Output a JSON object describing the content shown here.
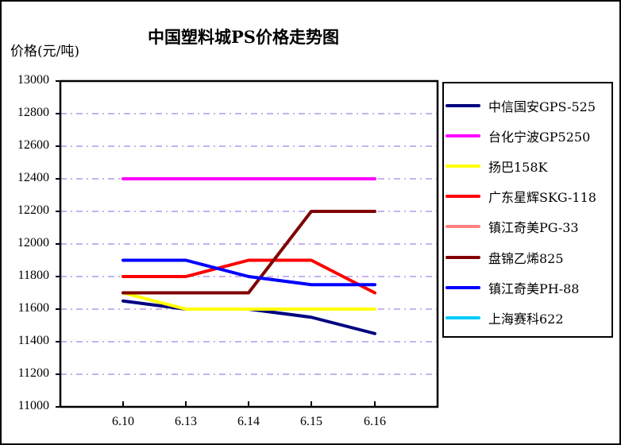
{
  "chart_data": {
    "type": "line",
    "title": "中国塑料城PS价格走势图",
    "ylabel": "价格(元/吨)",
    "xlabel": "",
    "categories": [
      "6.10",
      "6.13",
      "6.14",
      "6.15",
      "6.16"
    ],
    "ylim": [
      11000,
      13000
    ],
    "yticks": [
      13000,
      12800,
      12600,
      12400,
      12200,
      12000,
      11800,
      11600,
      11400,
      11200,
      11000
    ],
    "grid": true,
    "legend_position": "right",
    "series": [
      {
        "name": "中信国安GPS-525",
        "color": "#000080",
        "values": [
          11650,
          11600,
          11600,
          11550,
          11450
        ]
      },
      {
        "name": "台化宁波GP5250",
        "color": "#FF00FF",
        "values": [
          12400,
          12400,
          12400,
          12400,
          12400
        ]
      },
      {
        "name": "扬巴158K",
        "color": "#FFFF00",
        "values": [
          11700,
          11600,
          11600,
          11600,
          11600
        ]
      },
      {
        "name": "广东星辉SKG-118",
        "color": "#FF0000",
        "values": [
          11800,
          11800,
          11900,
          11900,
          11700
        ]
      },
      {
        "name": "镇江奇美PG-33",
        "color": "#FF8080",
        "values": [
          null,
          null,
          null,
          null,
          null
        ]
      },
      {
        "name": "盘锦乙烯825",
        "color": "#800000",
        "values": [
          11700,
          11700,
          11700,
          12200,
          12200
        ]
      },
      {
        "name": "镇江奇美PH-88",
        "color": "#0000FF",
        "values": [
          11900,
          11900,
          11800,
          11750,
          11750
        ]
      },
      {
        "name": "上海赛科622",
        "color": "#00CCFF",
        "values": [
          null,
          null,
          null,
          null,
          null
        ]
      }
    ]
  },
  "header": {
    "title": "中国塑料城PS价格走势图",
    "ylabel": "价格(元/吨)"
  },
  "axis": {
    "y": [
      "13000",
      "12800",
      "12600",
      "12400",
      "12200",
      "12000",
      "11800",
      "11600",
      "11400",
      "11200",
      "11000"
    ],
    "x": [
      "6.10",
      "6.13",
      "6.14",
      "6.15",
      "6.16"
    ]
  },
  "legend": {
    "items": [
      {
        "label": "中信国安GPS-525",
        "color": "#000080"
      },
      {
        "label": "台化宁波GP5250",
        "color": "#FF00FF"
      },
      {
        "label": "扬巴158K",
        "color": "#FFFF00"
      },
      {
        "label": "广东星辉SKG-118",
        "color": "#FF0000"
      },
      {
        "label": "镇江奇美PG-33",
        "color": "#FF8080"
      },
      {
        "label": "盘锦乙烯825",
        "color": "#800000"
      },
      {
        "label": "镇江奇美PH-88",
        "color": "#0000FF"
      },
      {
        "label": "上海赛科622",
        "color": "#00CCFF"
      }
    ]
  },
  "colors": {
    "gridline": "#B399E6",
    "axis": "#000000"
  }
}
